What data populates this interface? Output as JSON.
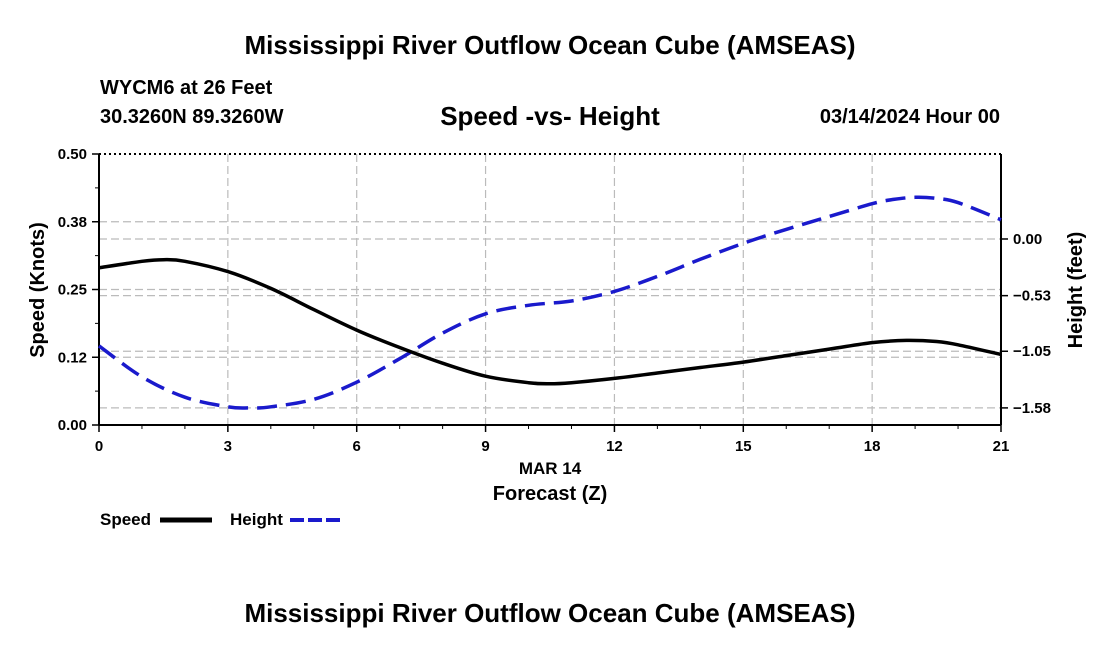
{
  "page": {
    "title_top": "Mississippi River Outflow Ocean Cube (AMSEAS)",
    "title_bottom": "Mississippi River Outflow Ocean Cube (AMSEAS)",
    "station": "WYCM6 at 26 Feet",
    "coords": "30.3260N  89.3260W",
    "datetime": "03/14/2024 Hour 00"
  },
  "chart_data": {
    "type": "line",
    "title": "Speed -vs- Height",
    "xlabel": "Forecast (Z)",
    "xsublabel": "MAR 14",
    "ylabel": "Speed (Knots)",
    "y2label": "Height (feet)",
    "xlim": [
      0,
      21
    ],
    "ylim": [
      0,
      0.5
    ],
    "y2lim": [
      -1.74,
      0.795
    ],
    "xticks": [
      0,
      3,
      6,
      9,
      12,
      15,
      18,
      21
    ],
    "xtick_labels": [
      "0",
      "3",
      "6",
      "9",
      "12",
      "15",
      "18",
      "21"
    ],
    "yticks": [
      0.0,
      0.125,
      0.25,
      0.375,
      0.5
    ],
    "ytick_labels": [
      "0.00",
      "0.12",
      "0.25",
      "0.38",
      "0.50"
    ],
    "y2ticks": [
      0.0,
      -0.53,
      -1.05,
      -1.58
    ],
    "y2tick_labels": [
      "0.00",
      "−0.53",
      "−1.05",
      "−1.58"
    ],
    "grid": true,
    "series": [
      {
        "name": "Speed",
        "axis": "left",
        "color": "#000000",
        "style": "solid",
        "x": [
          0,
          1,
          1.5,
          2,
          3,
          4,
          5,
          6,
          7,
          8,
          9,
          10,
          10.5,
          11,
          12,
          13,
          14,
          15,
          16,
          17,
          18,
          18.8,
          19.5,
          20,
          21
        ],
        "values": [
          0.29,
          0.302,
          0.305,
          0.302,
          0.283,
          0.252,
          0.213,
          0.175,
          0.143,
          0.114,
          0.09,
          0.078,
          0.076,
          0.078,
          0.086,
          0.096,
          0.106,
          0.116,
          0.128,
          0.14,
          0.152,
          0.156,
          0.154,
          0.148,
          0.13
        ]
      },
      {
        "name": "Height",
        "axis": "right",
        "color": "#1a1acc",
        "style": "dashed",
        "x": [
          0,
          1,
          2,
          3,
          3.5,
          4,
          5,
          6,
          7,
          8,
          9,
          10,
          11,
          12,
          13,
          14,
          15,
          16,
          17,
          18,
          18.5,
          19,
          19.5,
          20,
          21
        ],
        "values": [
          -1.0,
          -1.29,
          -1.48,
          -1.57,
          -1.58,
          -1.57,
          -1.5,
          -1.34,
          -1.12,
          -0.88,
          -0.7,
          -0.62,
          -0.58,
          -0.49,
          -0.35,
          -0.19,
          -0.04,
          0.09,
          0.21,
          0.33,
          0.37,
          0.39,
          0.38,
          0.34,
          0.18
        ]
      }
    ],
    "legend": {
      "placement": "bottom-left",
      "entries": [
        "Speed",
        "Height"
      ]
    }
  }
}
